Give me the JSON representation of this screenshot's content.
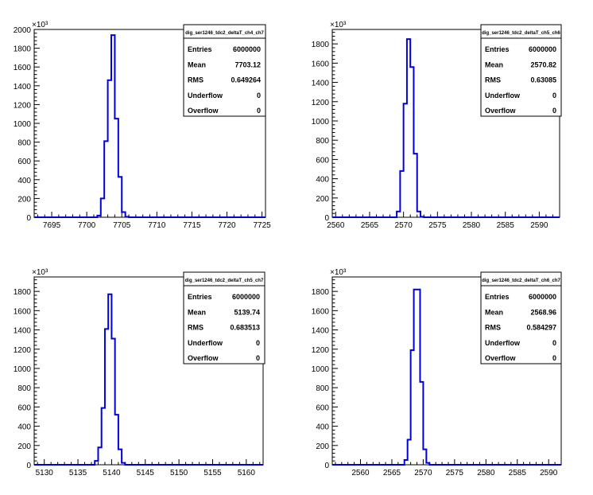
{
  "chart_data": [
    {
      "type": "histogram",
      "title": "",
      "xlabel": "",
      "ylabel": "",
      "y_exponent_label": "×10³",
      "xlim": [
        7692.5,
        7725.5
      ],
      "ylim": [
        0,
        2000
      ],
      "x_ticks": [
        7695,
        7700,
        7705,
        7710,
        7715,
        7720,
        7725
      ],
      "y_ticks": [
        0,
        200,
        400,
        600,
        800,
        1000,
        1200,
        1400,
        1600,
        1800,
        2000
      ],
      "y_tick_labels": [
        "0",
        "200",
        "400",
        "600",
        "800",
        "1000",
        "1200",
        "1400",
        "1600",
        "1800",
        "2000"
      ],
      "bin_width": 0.5,
      "bins": [
        {
          "x": 7701.5,
          "y": 18
        },
        {
          "x": 7702.0,
          "y": 200
        },
        {
          "x": 7702.5,
          "y": 810
        },
        {
          "x": 7703.0,
          "y": 1460
        },
        {
          "x": 7703.5,
          "y": 1940
        },
        {
          "x": 7704.0,
          "y": 1050
        },
        {
          "x": 7704.5,
          "y": 430
        },
        {
          "x": 7705.0,
          "y": 55
        },
        {
          "x": 7705.5,
          "y": 5
        }
      ],
      "line_color": "#0000dd",
      "stats": {
        "name": "dig_ser1246_tdc2_deltaT_ch4_ch7",
        "rows": [
          {
            "label": "Entries",
            "value": "6000000"
          },
          {
            "label": "Mean",
            "value": "7703.12"
          },
          {
            "label": "RMS",
            "value": "0.649264"
          },
          {
            "label": "Underflow",
            "value": "0"
          },
          {
            "label": "Overflow",
            "value": "0"
          }
        ]
      }
    },
    {
      "type": "histogram",
      "title": "",
      "xlabel": "",
      "ylabel": "",
      "y_exponent_label": "×10³",
      "xlim": [
        2559.5,
        2593.0
      ],
      "ylim": [
        0,
        1950
      ],
      "x_ticks": [
        2560,
        2565,
        2570,
        2575,
        2580,
        2585,
        2590
      ],
      "y_ticks": [
        0,
        200,
        400,
        600,
        800,
        1000,
        1200,
        1400,
        1600,
        1800
      ],
      "y_tick_labels": [
        "0",
        "200",
        "400",
        "600",
        "800",
        "1000",
        "1200",
        "1400",
        "1600",
        "1800"
      ],
      "bin_width": 0.5,
      "bins": [
        {
          "x": 2569.0,
          "y": 60
        },
        {
          "x": 2569.5,
          "y": 480
        },
        {
          "x": 2570.0,
          "y": 1180
        },
        {
          "x": 2570.5,
          "y": 1850
        },
        {
          "x": 2571.0,
          "y": 1560
        },
        {
          "x": 2571.5,
          "y": 660
        },
        {
          "x": 2572.0,
          "y": 60
        },
        {
          "x": 2572.5,
          "y": 5
        }
      ],
      "line_color": "#0000dd",
      "stats": {
        "name": "dig_ser1246_tdc2_deltaT_ch5_ch6",
        "rows": [
          {
            "label": "Entries",
            "value": "6000000"
          },
          {
            "label": "Mean",
            "value": "2570.82"
          },
          {
            "label": "RMS",
            "value": "0.63085"
          },
          {
            "label": "Underflow",
            "value": "0"
          },
          {
            "label": "Overflow",
            "value": "0"
          }
        ]
      }
    },
    {
      "type": "histogram",
      "title": "",
      "xlabel": "",
      "ylabel": "",
      "y_exponent_label": "×10³",
      "xlim": [
        5128.5,
        5162.5
      ],
      "ylim": [
        0,
        1950
      ],
      "x_ticks": [
        5130,
        5135,
        5140,
        5145,
        5150,
        5155,
        5160
      ],
      "y_ticks": [
        0,
        200,
        400,
        600,
        800,
        1000,
        1200,
        1400,
        1600,
        1800
      ],
      "y_tick_labels": [
        "0",
        "200",
        "400",
        "600",
        "800",
        "1000",
        "1200",
        "1400",
        "1600",
        "1800"
      ],
      "bin_width": 0.5,
      "bins": [
        {
          "x": 5137.5,
          "y": 40
        },
        {
          "x": 5138.0,
          "y": 180
        },
        {
          "x": 5138.5,
          "y": 590
        },
        {
          "x": 5139.0,
          "y": 1410
        },
        {
          "x": 5139.5,
          "y": 1770
        },
        {
          "x": 5140.0,
          "y": 1310
        },
        {
          "x": 5140.5,
          "y": 520
        },
        {
          "x": 5141.0,
          "y": 160
        },
        {
          "x": 5141.5,
          "y": 20
        }
      ],
      "line_color": "#0000dd",
      "stats": {
        "name": "dig_ser1246_tdc2_deltaT_ch5_ch7",
        "rows": [
          {
            "label": "Entries",
            "value": "6000000"
          },
          {
            "label": "Mean",
            "value": "5139.74"
          },
          {
            "label": "RMS",
            "value": "0.683513"
          },
          {
            "label": "Underflow",
            "value": "0"
          },
          {
            "label": "Overflow",
            "value": "0"
          }
        ]
      }
    },
    {
      "type": "histogram",
      "title": "",
      "xlabel": "",
      "ylabel": "",
      "y_exponent_label": "×10³",
      "xlim": [
        2555.5,
        2592.0
      ],
      "ylim": [
        0,
        1950
      ],
      "x_ticks": [
        2560,
        2565,
        2570,
        2575,
        2580,
        2585,
        2590
      ],
      "y_ticks": [
        0,
        200,
        400,
        600,
        800,
        1000,
        1200,
        1400,
        1600,
        1800
      ],
      "y_tick_labels": [
        "0",
        "200",
        "400",
        "600",
        "800",
        "1000",
        "1200",
        "1400",
        "1600",
        "1800"
      ],
      "bin_width": 0.5,
      "bins": [
        {
          "x": 2567.0,
          "y": 50
        },
        {
          "x": 2567.5,
          "y": 260
        },
        {
          "x": 2568.0,
          "y": 1190
        },
        {
          "x": 2568.5,
          "y": 1820
        },
        {
          "x": 2569.0,
          "y": 1820
        },
        {
          "x": 2569.5,
          "y": 860
        },
        {
          "x": 2570.0,
          "y": 160
        },
        {
          "x": 2570.5,
          "y": 20
        }
      ],
      "line_color": "#0000dd",
      "stats": {
        "name": "dig_ser1246_tdc2_deltaT_ch6_ch7",
        "rows": [
          {
            "label": "Entries",
            "value": "6000000"
          },
          {
            "label": "Mean",
            "value": "2568.96"
          },
          {
            "label": "RMS",
            "value": "0.584297"
          },
          {
            "label": "Underflow",
            "value": "0"
          },
          {
            "label": "Overflow",
            "value": "0"
          }
        ]
      }
    }
  ]
}
